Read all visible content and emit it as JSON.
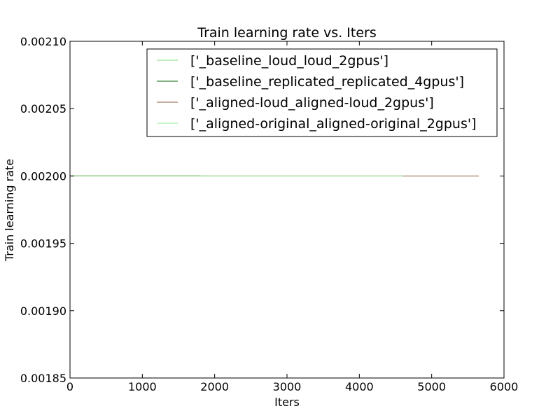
{
  "chart_data": {
    "type": "line",
    "title": "Train learning rate  vs. Iters",
    "xlabel": "Iters",
    "ylabel": "Train learning rate",
    "xlim": [
      0,
      6000
    ],
    "ylim": [
      0.00185,
      0.0021
    ],
    "xticks": [
      0,
      1000,
      2000,
      3000,
      4000,
      5000,
      6000
    ],
    "xtick_labels": [
      "0",
      "1000",
      "2000",
      "3000",
      "4000",
      "5000",
      "6000"
    ],
    "yticks": [
      0.00185,
      0.0019,
      0.00195,
      0.002,
      0.00205,
      0.0021
    ],
    "ytick_labels": [
      "0.00185",
      "0.00190",
      "0.00195",
      "0.00200",
      "0.00205",
      "0.00210"
    ],
    "grid": false,
    "legend_position": "top-right",
    "series": [
      {
        "name": "['_baseline_loud_loud_2gpus']",
        "color": "#7fd87f",
        "x": [
          0,
          1850
        ],
        "y": [
          0.002,
          0.002
        ]
      },
      {
        "name": "['_baseline_replicated_replicated_4gpus']",
        "color": "#006400",
        "x": [
          0,
          1800
        ],
        "y": [
          0.002,
          0.002
        ]
      },
      {
        "name": "['_aligned-loud_aligned-loud_2gpus']",
        "color": "#8b5a3c",
        "x": [
          0,
          5650
        ],
        "y": [
          0.002,
          0.002
        ]
      },
      {
        "name": "['_aligned-original_aligned-original_2gpus']",
        "color": "#90ee90",
        "x": [
          0,
          4600
        ],
        "y": [
          0.002,
          0.002
        ]
      }
    ]
  }
}
